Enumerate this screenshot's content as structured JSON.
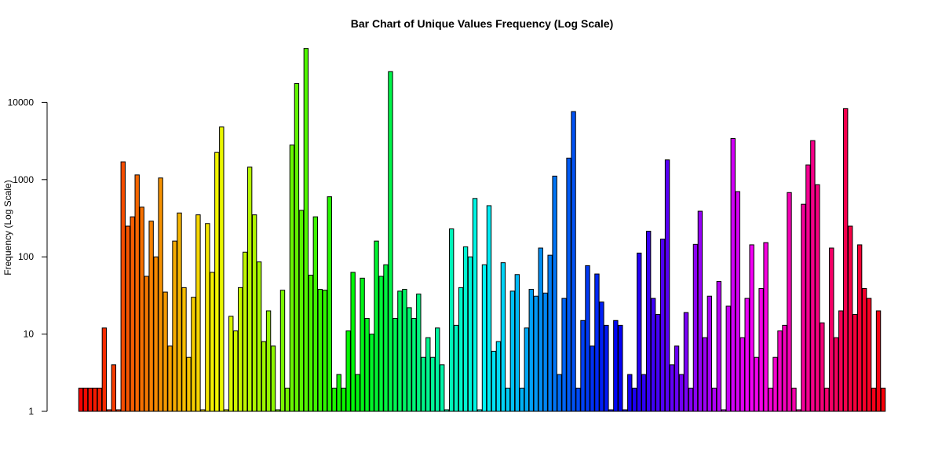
{
  "chart_data": {
    "type": "bar",
    "title": "Bar Chart of Unique Values Frequency (Log Scale)",
    "xlabel": "",
    "ylabel": "Frequency (Log Scale)",
    "y_scale": "log",
    "y_ticks": [
      1,
      10,
      100,
      1000,
      10000
    ],
    "y_tick_labels": [
      "1",
      "10",
      "100",
      "1000",
      "10000"
    ],
    "x_tick_labels": false,
    "bar_colors": "rainbow gradient (red → orange → yellow → green → cyan → blue → purple → magenta → red)",
    "values": [
      2,
      2,
      2,
      2,
      2,
      12,
      1,
      4,
      1,
      1700,
      250,
      330,
      1150,
      440,
      56,
      290,
      100,
      1050,
      35,
      7,
      160,
      370,
      40,
      5,
      30,
      350,
      1,
      270,
      63,
      2250,
      4800,
      1,
      17,
      11,
      40,
      115,
      1450,
      350,
      86,
      8,
      20,
      7,
      1,
      37,
      2,
      2800,
      17500,
      400,
      50000,
      58,
      330,
      38,
      37,
      600,
      2,
      3,
      2,
      11,
      63,
      3,
      53,
      16,
      10,
      160,
      56,
      79,
      25000,
      16,
      36,
      38,
      22,
      16,
      33,
      5,
      9,
      5,
      12,
      4,
      1,
      230,
      13,
      40,
      135,
      100,
      570,
      1,
      79,
      460,
      6,
      8,
      84,
      2,
      36,
      59,
      2,
      12,
      38,
      31,
      130,
      34,
      105,
      1110,
      3,
      29,
      1900,
      7600,
      2,
      15,
      77,
      7,
      60,
      26,
      13,
      1,
      15,
      13,
      1,
      3,
      2,
      112,
      3,
      215,
      29,
      18,
      170,
      1800,
      4,
      7,
      3,
      19,
      2,
      145,
      390,
      9,
      31,
      2,
      48,
      1,
      23,
      3400,
      700,
      9,
      29,
      143,
      5,
      39,
      153,
      2,
      5,
      11,
      13,
      680,
      2,
      1,
      480,
      1550,
      3200,
      860,
      14,
      2,
      130,
      9,
      20,
      8300,
      250,
      18,
      143,
      39,
      29,
      2,
      20,
      2
    ]
  }
}
